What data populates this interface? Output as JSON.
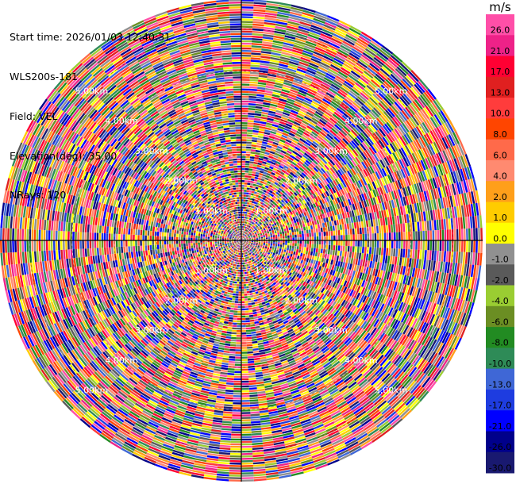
{
  "info": {
    "start_time": "Start time: 2026/01/03 12:40:31",
    "instrument": "WLS200s-181",
    "field": "Field: VEL",
    "elevation": "Elevation(deg): 35.00",
    "nrays": "NRays: 120"
  },
  "chart_data": {
    "type": "heatmap",
    "subtype": "polar-ppi",
    "nrays": 120,
    "range_rings_km": [
      1.0,
      2.0,
      3.0,
      4.0,
      5.0
    ],
    "range_ring_labels": [
      "1.00km",
      "2.00km",
      "3.00km",
      "4.00km",
      "5.00km"
    ],
    "colorbar": {
      "unit": "m/s",
      "tick_labels": [
        "26.0",
        "21.0",
        "17.0",
        "13.0",
        "10.0",
        "8.0",
        "6.0",
        "4.0",
        "2.0",
        "1.0",
        "0.0",
        "-1.0",
        "-2.0",
        "-4.0",
        "-6.0",
        "-8.0",
        "-10.0",
        "-13.0",
        "-17.0",
        "-21.0",
        "-26.0",
        "-30.0"
      ],
      "colors": [
        "#ff4fa8",
        "#ee2288",
        "#ff0033",
        "#e02020",
        "#ff3c3c",
        "#ff4500",
        "#ff6a4a",
        "#ff8a70",
        "#ff9f1a",
        "#ffcc00",
        "#ffff00",
        "#909090",
        "#5a5a5a",
        "#9acd32",
        "#6b8e23",
        "#228b22",
        "#2e8b57",
        "#3f67d6",
        "#1e3ce0",
        "#0000ff",
        "#00008b",
        "#191970"
      ],
      "top_value": 30,
      "bottom_value": -30
    }
  }
}
